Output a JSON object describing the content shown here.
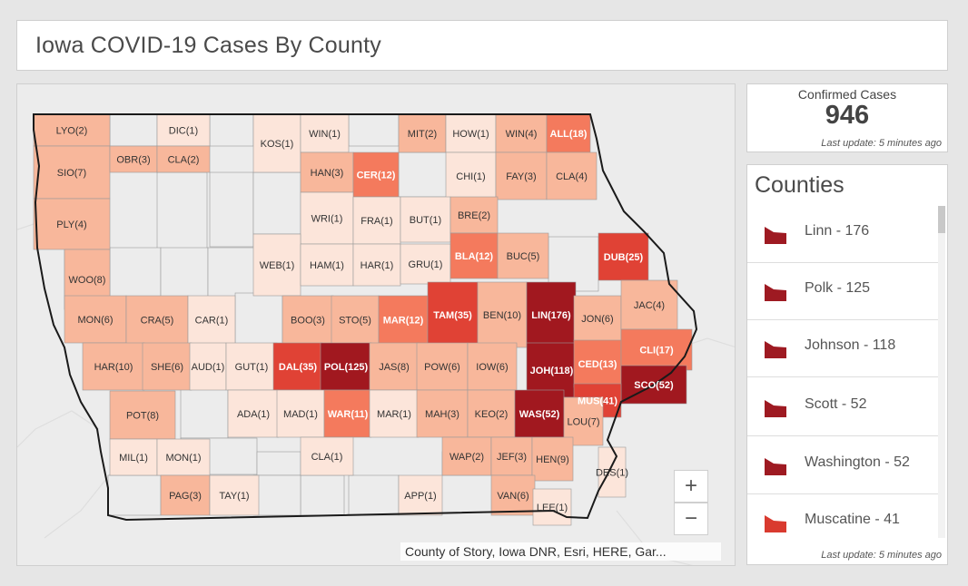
{
  "header": {
    "title": "Iowa COVID-19 Cases By County"
  },
  "summary": {
    "label": "Confirmed Cases",
    "value": "946",
    "updated": "Last update: 5 minutes ago"
  },
  "counties_panel": {
    "title": "Counties",
    "updated": "Last update: 5 minutes ago",
    "items": [
      {
        "label": "Linn - 176",
        "color": "#9e1a22"
      },
      {
        "label": "Polk - 125",
        "color": "#9e1a22"
      },
      {
        "label": "Johnson - 118",
        "color": "#9e1a22"
      },
      {
        "label": "Scott - 52",
        "color": "#9e1a22"
      },
      {
        "label": "Washington - 52",
        "color": "#9e1a22"
      },
      {
        "label": "Muscatine - 41",
        "color": "#d93a2f"
      }
    ]
  },
  "map": {
    "zoom_in": "+",
    "zoom_out": "−",
    "attribution": "County of Story, Iowa DNR, Esri, HERE, Gar...",
    "colors": {
      "none": "#ececec",
      "c1": "#fce5da",
      "c2": "#f8b79b",
      "c3": "#f47a5d",
      "c4": "#e04235",
      "c5": "#a1181f"
    },
    "counties": [
      {
        "label": "LYO(2)",
        "cases": 2
      },
      {
        "label": "DIC(1)",
        "cases": 1
      },
      {
        "label": "KOS(1)",
        "cases": 1
      },
      {
        "label": "WIN(1)",
        "cases": 1
      },
      {
        "label": "MIT(2)",
        "cases": 2
      },
      {
        "label": "HOW(1)",
        "cases": 1
      },
      {
        "label": "WIN(4)",
        "cases": 4
      },
      {
        "label": "ALL(18)",
        "cases": 18
      },
      {
        "label": "SIO(7)",
        "cases": 7
      },
      {
        "label": "OBR(3)",
        "cases": 3
      },
      {
        "label": "CLA(2)",
        "cases": 2
      },
      {
        "label": "HAN(3)",
        "cases": 3
      },
      {
        "label": "CER(12)",
        "cases": 12
      },
      {
        "label": "CHI(1)",
        "cases": 1
      },
      {
        "label": "FAY(3)",
        "cases": 3
      },
      {
        "label": "CLA(4)",
        "cases": 4
      },
      {
        "label": "PLY(4)",
        "cases": 4
      },
      {
        "label": "WRI(1)",
        "cases": 1
      },
      {
        "label": "FRA(1)",
        "cases": 1
      },
      {
        "label": "BUT(1)",
        "cases": 1
      },
      {
        "label": "BRE(2)",
        "cases": 2
      },
      {
        "label": "WEB(1)",
        "cases": 1
      },
      {
        "label": "HAM(1)",
        "cases": 1
      },
      {
        "label": "HAR(1)",
        "cases": 1
      },
      {
        "label": "GRU(1)",
        "cases": 1
      },
      {
        "label": "BLA(12)",
        "cases": 12
      },
      {
        "label": "BUC(5)",
        "cases": 5
      },
      {
        "label": "DUB(25)",
        "cases": 25
      },
      {
        "label": "WOO(8)",
        "cases": 8
      },
      {
        "label": "MON(6)",
        "cases": 6
      },
      {
        "label": "CRA(5)",
        "cases": 5
      },
      {
        "label": "CAR(1)",
        "cases": 1
      },
      {
        "label": "BOO(3)",
        "cases": 3
      },
      {
        "label": "STO(5)",
        "cases": 5
      },
      {
        "label": "MAR(12)",
        "cases": 12
      },
      {
        "label": "TAM(35)",
        "cases": 35
      },
      {
        "label": "BEN(10)",
        "cases": 10
      },
      {
        "label": "LIN(176)",
        "cases": 176
      },
      {
        "label": "JON(6)",
        "cases": 6
      },
      {
        "label": "JAC(4)",
        "cases": 4
      },
      {
        "label": "HAR(10)",
        "cases": 10
      },
      {
        "label": "SHE(6)",
        "cases": 6
      },
      {
        "label": "AUD(1)",
        "cases": 1
      },
      {
        "label": "GUT(1)",
        "cases": 1
      },
      {
        "label": "DAL(35)",
        "cases": 35
      },
      {
        "label": "POL(125)",
        "cases": 125
      },
      {
        "label": "JAS(8)",
        "cases": 8
      },
      {
        "label": "POW(6)",
        "cases": 6
      },
      {
        "label": "IOW(6)",
        "cases": 6
      },
      {
        "label": "JOH(118)",
        "cases": 118
      },
      {
        "label": "CED(13)",
        "cases": 13
      },
      {
        "label": "CLI(17)",
        "cases": 17
      },
      {
        "label": "SCO(52)",
        "cases": 52
      },
      {
        "label": "MUS(41)",
        "cases": 41
      },
      {
        "label": "POT(8)",
        "cases": 8
      },
      {
        "label": "ADA(1)",
        "cases": 1
      },
      {
        "label": "MAD(1)",
        "cases": 1
      },
      {
        "label": "WAR(11)",
        "cases": 11
      },
      {
        "label": "MAR(1)",
        "cases": 1
      },
      {
        "label": "MAH(3)",
        "cases": 3
      },
      {
        "label": "KEO(2)",
        "cases": 2
      },
      {
        "label": "WAS(52)",
        "cases": 52
      },
      {
        "label": "LOU(7)",
        "cases": 7
      },
      {
        "label": "MIL(1)",
        "cases": 1
      },
      {
        "label": "MON(1)",
        "cases": 1
      },
      {
        "label": "CLA(1)",
        "cases": 1
      },
      {
        "label": "WAP(2)",
        "cases": 2
      },
      {
        "label": "JEF(3)",
        "cases": 3
      },
      {
        "label": "HEN(9)",
        "cases": 9
      },
      {
        "label": "DES(1)",
        "cases": 1
      },
      {
        "label": "PAG(3)",
        "cases": 3
      },
      {
        "label": "TAY(1)",
        "cases": 1
      },
      {
        "label": "APP(1)",
        "cases": 1
      },
      {
        "label": "VAN(6)",
        "cases": 6
      },
      {
        "label": "LEE(1)",
        "cases": 1
      }
    ]
  }
}
